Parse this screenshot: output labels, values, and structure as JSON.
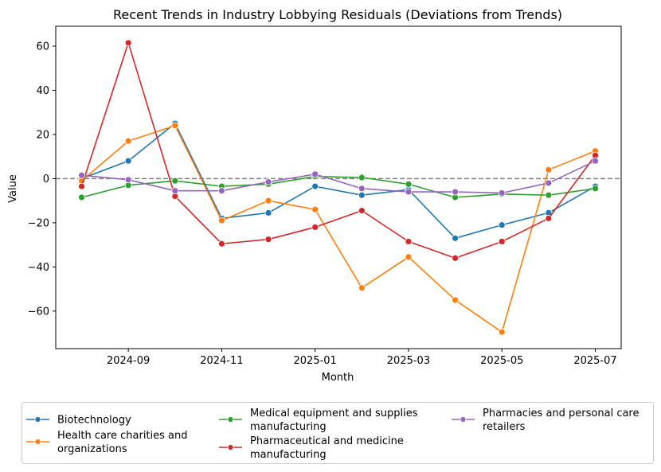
{
  "chart_data": {
    "type": "line",
    "title": "Recent Trends in Industry Lobbying Residuals (Deviations from Trends)",
    "xlabel": "Month",
    "ylabel": "Value",
    "x": [
      "2024-08",
      "2024-09",
      "2024-10",
      "2024-11",
      "2024-12",
      "2025-01",
      "2025-02",
      "2025-03",
      "2025-04",
      "2025-05",
      "2025-06",
      "2025-07"
    ],
    "x_tick_labels": [
      "2024-09",
      "2024-11",
      "2025-01",
      "2025-03",
      "2025-05",
      "2025-07"
    ],
    "ylim": [
      -77,
      69
    ],
    "y_ticks": [
      -60,
      -40,
      -20,
      0,
      20,
      40,
      60
    ],
    "y_tick_labels": [
      "−60",
      "−40",
      "−20",
      "0",
      "20",
      "40",
      "60"
    ],
    "reference_line": {
      "y": 0,
      "style": "dashed",
      "color": "#808080"
    },
    "grid": false,
    "legend_position": "below",
    "series": [
      {
        "name": "Biotechnology",
        "color": "#1f77b4",
        "values": [
          0,
          8,
          25,
          -18,
          -15.5,
          -3.5,
          -7.5,
          -5,
          -27,
          -21,
          -15.5,
          -3.5
        ]
      },
      {
        "name": "Health care charities and organizations",
        "color": "#ff7f0e",
        "values": [
          -1,
          17,
          24,
          -19,
          -10,
          -14,
          -49.5,
          -35.5,
          -55,
          -69.5,
          4,
          12.5
        ]
      },
      {
        "name": "Medical equipment and supplies manufacturing",
        "color": "#2ca02c",
        "values": [
          -8.5,
          -3,
          -1,
          -3.5,
          -2.5,
          1,
          0.5,
          -2.5,
          -8.5,
          -7,
          -7.5,
          -4.5
        ]
      },
      {
        "name": "Pharmaceutical and medicine manufacturing",
        "color": "#d62728",
        "values": [
          -3.5,
          61.5,
          -8,
          -29.5,
          -27.5,
          -22,
          -14.5,
          -28.5,
          -36,
          -28.5,
          -18,
          10.5
        ]
      },
      {
        "name": "Pharmacies and personal care retailers",
        "color": "#9467bd",
        "values": [
          1.5,
          -0.5,
          -5.5,
          -5.5,
          -1.5,
          2,
          -4.5,
          -6,
          -6,
          -6.5,
          -2,
          8
        ]
      }
    ],
    "legend_labels": [
      [
        "Biotechnology"
      ],
      [
        "Health care charities and",
        "organizations"
      ],
      [
        "Medical equipment and supplies",
        "manufacturing"
      ],
      [
        "Pharmaceutical and medicine",
        "manufacturing"
      ],
      [
        "Pharmacies and personal care",
        "retailers"
      ]
    ]
  }
}
